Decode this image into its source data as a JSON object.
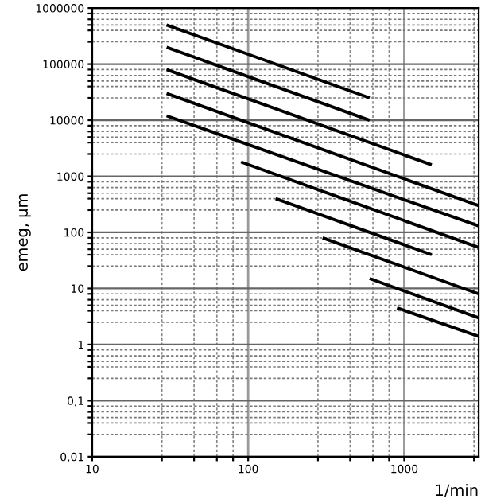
{
  "chart_data": {
    "type": "line",
    "xlabel": "1/min",
    "ylabel": "emeg, µm",
    "log": "xy",
    "grid": true,
    "line_style": "solid",
    "marker": "none",
    "xlim": [
      10,
      3000
    ],
    "ylim": [
      0.01,
      1000000
    ],
    "xticks": [
      10,
      {
        "value": 28,
        "label": null
      },
      {
        "value": 45,
        "label": null
      },
      {
        "value": 63,
        "label": null
      },
      {
        "value": 80,
        "label": null
      },
      100,
      {
        "value": 280,
        "label": null
      },
      {
        "value": 450,
        "label": null
      },
      {
        "value": 630,
        "label": null
      },
      {
        "value": 800,
        "label": null
      },
      1000,
      {
        "value": 2800,
        "label": null
      }
    ],
    "yticks": [
      {
        "value": 0.01,
        "label": "0,01"
      },
      {
        "value": 0.025,
        "label": null
      },
      {
        "value": 0.04,
        "label": null
      },
      {
        "value": 0.05,
        "label": null
      },
      {
        "value": 0.063,
        "label": null
      },
      {
        "value": 0.08,
        "label": null
      },
      {
        "value": 0.1,
        "label": "0,1"
      },
      {
        "value": 0.25,
        "label": null
      },
      {
        "value": 0.4,
        "label": null
      },
      {
        "value": 0.5,
        "label": null
      },
      {
        "value": 0.63,
        "label": null
      },
      {
        "value": 0.8,
        "label": null
      },
      1,
      {
        "value": 2.5,
        "label": null
      },
      {
        "value": 4,
        "label": null
      },
      {
        "value": 5,
        "label": null
      },
      {
        "value": 6.3,
        "label": null
      },
      {
        "value": 8,
        "label": null
      },
      10,
      {
        "value": 25,
        "label": null
      },
      {
        "value": 40,
        "label": null
      },
      {
        "value": 50,
        "label": null
      },
      {
        "value": 63,
        "label": null
      },
      {
        "value": 80,
        "label": null
      },
      100,
      {
        "value": 250,
        "label": null
      },
      {
        "value": 400,
        "label": null
      },
      {
        "value": 500,
        "label": null
      },
      {
        "value": 630,
        "label": null
      },
      {
        "value": 800,
        "label": null
      },
      1000,
      {
        "value": 2500,
        "label": null
      },
      {
        "value": 4000,
        "label": null
      },
      {
        "value": 5000,
        "label": null
      },
      {
        "value": 6300,
        "label": null
      },
      {
        "value": 8000,
        "label": null
      },
      10000,
      {
        "value": 25000,
        "label": null
      },
      {
        "value": 40000,
        "label": null
      },
      {
        "value": 50000,
        "label": null
      },
      {
        "value": 63000,
        "label": null
      },
      {
        "value": 80000,
        "label": null
      },
      100000,
      {
        "value": 250000,
        "label": null
      },
      {
        "value": 400000,
        "label": null
      },
      {
        "value": 500000,
        "label": null
      },
      {
        "value": 630000,
        "label": null
      },
      {
        "value": 800000,
        "label": null
      },
      1000000
    ],
    "series": [
      {
        "color": "#000000",
        "x": [
          30,
          600
        ],
        "values": [
          500000,
          25000
        ]
      },
      {
        "color": "#000000",
        "x": [
          30,
          600
        ],
        "values": [
          200000,
          10000
        ]
      },
      {
        "color": "#000000",
        "x": [
          30,
          1500
        ],
        "values": [
          80000,
          1600
        ]
      },
      {
        "color": "#000000",
        "x": [
          30,
          3000
        ],
        "values": [
          30000,
          300
        ]
      },
      {
        "color": "#000000",
        "x": [
          30,
          3000
        ],
        "values": [
          12000,
          130
        ]
      },
      {
        "color": "#000000",
        "x": [
          90,
          3000
        ],
        "values": [
          1800,
          54
        ]
      },
      {
        "color": "#000000",
        "x": [
          150,
          1500
        ],
        "values": [
          400,
          40
        ]
      },
      {
        "color": "#000000",
        "x": [
          300,
          3000
        ],
        "values": [
          80,
          8
        ]
      },
      {
        "color": "#000000",
        "x": [
          600,
          3000
        ],
        "values": [
          15,
          3
        ]
      },
      {
        "color": "#000000",
        "x": [
          900,
          3000
        ],
        "values": [
          4.5,
          1.4
        ]
      }
    ]
  }
}
